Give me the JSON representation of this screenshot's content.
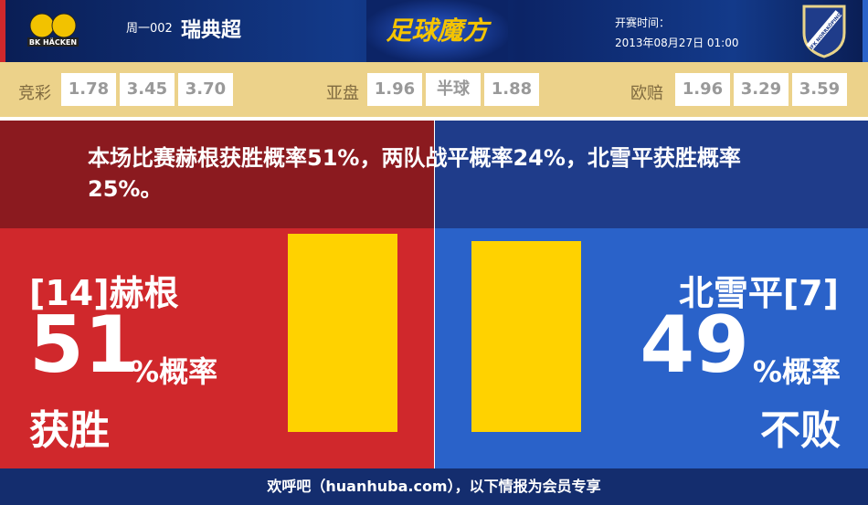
{
  "header": {
    "home_logo_text": "BK HÄCKEN",
    "week": "周一002",
    "league": "瑞典超",
    "brand": "足球魔方",
    "time_label": "开赛时间：",
    "time_value": "2013年08月27日 01:00",
    "away_logo_text": "IFK NORRKÖPING"
  },
  "odds": {
    "jingcai": {
      "label": "竞彩",
      "values": [
        "1.78",
        "3.45",
        "3.70"
      ]
    },
    "yapan": {
      "label": "亚盘",
      "values": [
        "1.96",
        "半球",
        "1.88"
      ]
    },
    "ouzhi": {
      "label": "欧赔",
      "values": [
        "1.96",
        "3.29",
        "3.59"
      ]
    }
  },
  "summary": "本场比赛赫根获胜概率51%，两队战平概率24%，北雪平获胜概率25%。",
  "home": {
    "team": "[14]赫根",
    "percent": "51",
    "percent_suffix": "%概率",
    "outcome": "获胜",
    "probability": 51,
    "color": "#d0282c"
  },
  "away": {
    "team": "北雪平[7]",
    "percent": "49",
    "percent_suffix": "%概率",
    "outcome": "不败",
    "probability": 49,
    "color": "#2a62c9"
  },
  "bar_color": "#ffd200",
  "footer": "欢呼吧（huanhuba.com），以下情报为会员专享"
}
